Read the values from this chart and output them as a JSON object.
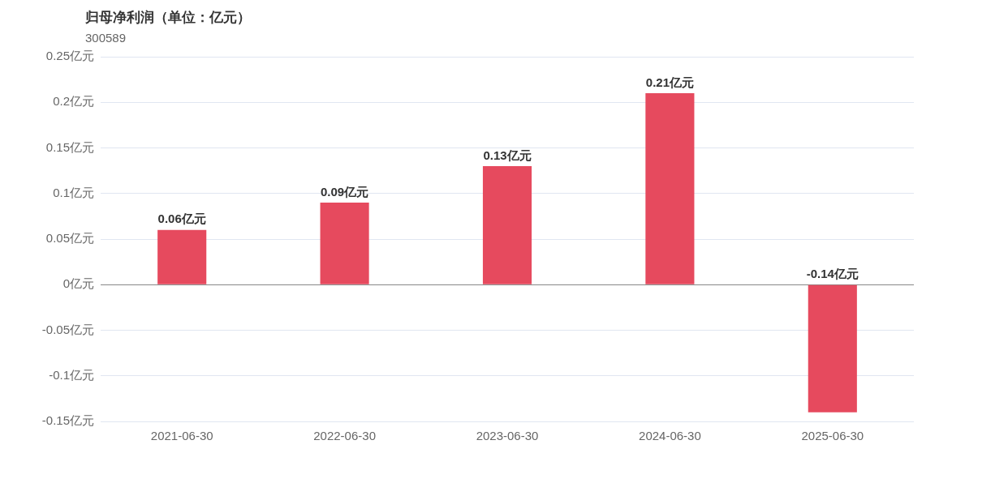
{
  "chart_data": {
    "type": "bar",
    "title": "归母净利润（单位：亿元）",
    "subtitle": "300589",
    "categories": [
      "2021-06-30",
      "2022-06-30",
      "2023-06-30",
      "2024-06-30",
      "2025-06-30"
    ],
    "values": [
      0.06,
      0.09,
      0.13,
      0.21,
      -0.14
    ],
    "value_labels": [
      "0.06亿元",
      "0.09亿元",
      "0.13亿元",
      "0.21亿元",
      "-0.14亿元"
    ],
    "color": "#e64a5e",
    "ylim": [
      -0.15,
      0.25
    ],
    "yticks": [
      {
        "value": -0.15,
        "label": "-0.15亿元"
      },
      {
        "value": -0.1,
        "label": "-0.1亿元"
      },
      {
        "value": -0.05,
        "label": "-0.05亿元"
      },
      {
        "value": 0,
        "label": "0亿元"
      },
      {
        "value": 0.05,
        "label": "0.05亿元"
      },
      {
        "value": 0.1,
        "label": "0.1亿元"
      },
      {
        "value": 0.15,
        "label": "0.15亿元"
      },
      {
        "value": 0.2,
        "label": "0.2亿元"
      },
      {
        "value": 0.25,
        "label": "0.25亿元"
      }
    ],
    "grid": "y",
    "legend": false
  }
}
